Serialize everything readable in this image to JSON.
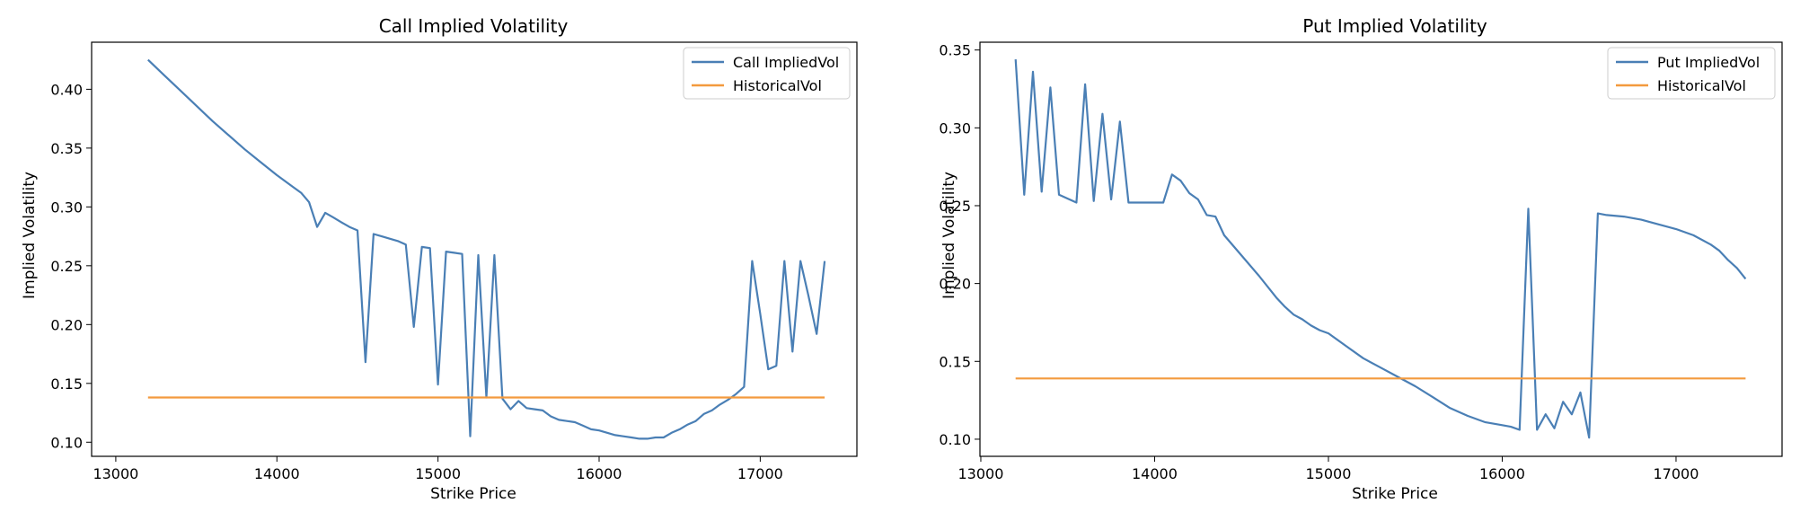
{
  "chart_data": [
    {
      "type": "line",
      "title": "Call Implied Volatility",
      "xlabel": "Strike Price",
      "ylabel": "Implied Volatility",
      "xlim": [
        12850,
        17600
      ],
      "ylim": [
        0.088,
        0.44
      ],
      "xticks": [
        13000,
        14000,
        15000,
        16000,
        17000
      ],
      "yticks": [
        0.1,
        0.15,
        0.2,
        0.25,
        0.3,
        0.35,
        0.4
      ],
      "xtick_labels": [
        "13000",
        "14000",
        "15000",
        "16000",
        "17000"
      ],
      "ytick_labels": [
        "0.10",
        "0.15",
        "0.20",
        "0.25",
        "0.30",
        "0.35",
        "0.40"
      ],
      "legend_position": "top-right",
      "grid": false,
      "series": [
        {
          "name": "Call ImpliedVol",
          "color": "#4a7fb5",
          "x": [
            13200,
            13300,
            13400,
            13500,
            13600,
            13700,
            13800,
            13900,
            14000,
            14100,
            14150,
            14200,
            14250,
            14300,
            14350,
            14400,
            14450,
            14500,
            14550,
            14600,
            14650,
            14700,
            14750,
            14800,
            14850,
            14900,
            14950,
            15000,
            15050,
            15100,
            15150,
            15200,
            15250,
            15300,
            15350,
            15400,
            15450,
            15500,
            15550,
            15600,
            15650,
            15700,
            15750,
            15800,
            15850,
            15900,
            15950,
            16000,
            16050,
            16100,
            16150,
            16200,
            16250,
            16300,
            16350,
            16400,
            16450,
            16500,
            16550,
            16600,
            16650,
            16700,
            16750,
            16800,
            16850,
            16900,
            16950,
            17000,
            17050,
            17100,
            17150,
            17200,
            17250,
            17300,
            17350,
            17400
          ],
          "y": [
            0.425,
            0.412,
            0.399,
            0.386,
            0.373,
            0.361,
            0.349,
            0.338,
            0.327,
            0.317,
            0.312,
            0.304,
            0.283,
            0.295,
            0.291,
            0.287,
            0.283,
            0.28,
            0.168,
            0.277,
            0.275,
            0.273,
            0.271,
            0.268,
            0.198,
            0.266,
            0.265,
            0.149,
            0.262,
            0.261,
            0.26,
            0.105,
            0.259,
            0.138,
            0.259,
            0.137,
            0.128,
            0.135,
            0.129,
            0.128,
            0.127,
            0.122,
            0.119,
            0.118,
            0.117,
            0.114,
            0.111,
            0.11,
            0.108,
            0.106,
            0.105,
            0.104,
            0.103,
            0.103,
            0.104,
            0.104,
            0.108,
            0.111,
            0.115,
            0.118,
            0.124,
            0.127,
            0.132,
            0.136,
            0.141,
            0.147,
            0.254,
            0.209,
            0.162,
            0.165,
            0.254,
            0.177,
            0.254,
            0.224,
            0.192,
            0.254
          ]
        },
        {
          "name": "HistoricalVol",
          "color": "#f39a3e",
          "x": [
            13200,
            17400
          ],
          "y": [
            0.138,
            0.138
          ]
        }
      ]
    },
    {
      "type": "line",
      "title": "Put Implied Volatility",
      "xlabel": "Strike Price",
      "ylabel": "Implied Volatility",
      "xlim": [
        12995,
        17610
      ],
      "ylim": [
        0.089,
        0.355
      ],
      "xticks": [
        13000,
        14000,
        15000,
        16000,
        17000
      ],
      "yticks": [
        0.1,
        0.15,
        0.2,
        0.25,
        0.3,
        0.35
      ],
      "xtick_labels": [
        "13000",
        "14000",
        "15000",
        "16000",
        "17000"
      ],
      "ytick_labels": [
        "0.10",
        "0.15",
        "0.20",
        "0.25",
        "0.30",
        "0.35"
      ],
      "legend_position": "top-right",
      "grid": false,
      "series": [
        {
          "name": "Put ImpliedVol",
          "color": "#4a7fb5",
          "x": [
            13200,
            13250,
            13300,
            13350,
            13400,
            13450,
            13550,
            13600,
            13650,
            13700,
            13750,
            13800,
            13850,
            14050,
            14100,
            14150,
            14200,
            14250,
            14300,
            14350,
            14400,
            14500,
            14600,
            14700,
            14750,
            14800,
            14850,
            14900,
            14950,
            15000,
            15100,
            15200,
            15300,
            15400,
            15500,
            15600,
            15700,
            15800,
            15900,
            16000,
            16050,
            16100,
            16150,
            16200,
            16250,
            16300,
            16350,
            16400,
            16450,
            16500,
            16550,
            16600,
            16700,
            16800,
            16900,
            17000,
            17100,
            17200,
            17250,
            17300,
            17350,
            17400
          ],
          "y": [
            0.344,
            0.257,
            0.336,
            0.259,
            0.326,
            0.257,
            0.252,
            0.328,
            0.253,
            0.309,
            0.254,
            0.304,
            0.252,
            0.252,
            0.27,
            0.266,
            0.258,
            0.254,
            0.244,
            0.243,
            0.231,
            0.218,
            0.205,
            0.191,
            0.185,
            0.18,
            0.177,
            0.173,
            0.17,
            0.168,
            0.16,
            0.152,
            0.146,
            0.14,
            0.134,
            0.127,
            0.12,
            0.115,
            0.111,
            0.109,
            0.108,
            0.106,
            0.248,
            0.106,
            0.116,
            0.107,
            0.124,
            0.116,
            0.13,
            0.101,
            0.245,
            0.244,
            0.243,
            0.241,
            0.238,
            0.235,
            0.231,
            0.225,
            0.221,
            0.215,
            0.21,
            0.203
          ]
        },
        {
          "name": "HistoricalVol",
          "color": "#f39a3e",
          "x": [
            13200,
            17400
          ],
          "y": [
            0.139,
            0.139
          ]
        }
      ]
    }
  ]
}
